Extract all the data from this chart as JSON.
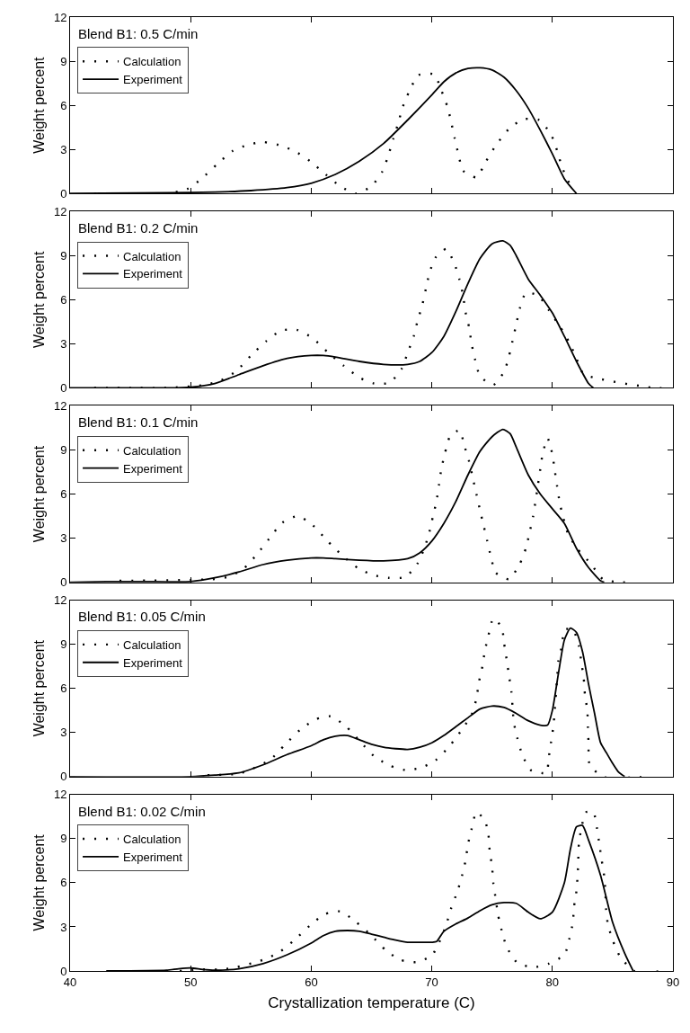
{
  "chart_data": [
    {
      "type": "line",
      "title": "Blend B1: 0.5 C/min",
      "ylabel": "Weight percent",
      "xlim": [
        40,
        90
      ],
      "xticks": [
        40,
        50,
        60,
        70,
        80,
        90
      ],
      "ylim": [
        0,
        12
      ],
      "yticks": [
        0,
        3,
        6,
        9,
        12
      ],
      "tick_labels": "y",
      "grid": false,
      "legend": "top left",
      "series": [
        {
          "name": "Calculation",
          "line_style": "dotted",
          "marker": "none",
          "color": "#000000",
          "x": [
            42,
            44,
            46,
            48,
            49.7,
            50.9,
            52.2,
            53.5,
            54.7,
            56.0,
            57.3,
            58.6,
            59.9,
            61.2,
            62.4,
            63.7,
            65.0,
            65.9,
            66.4,
            66.8,
            67.2,
            67.6,
            68.1,
            68.9,
            70.2,
            70.8,
            71.3,
            71.6,
            71.9,
            72.2,
            72.6,
            73.7,
            74.5,
            75.3,
            76.4,
            77.6,
            78.9,
            79.9,
            80.4,
            80.8,
            81.4
          ],
          "values": [
            0,
            0,
            0,
            0,
            0.3,
            1.0,
            2.0,
            2.9,
            3.3,
            3.5,
            3.3,
            2.9,
            2.2,
            1.3,
            0.5,
            0,
            0.5,
            1.5,
            2.6,
            3.7,
            4.75,
            5.9,
            6.9,
            8.05,
            8.1,
            7.0,
            5.9,
            4.9,
            3.75,
            2.7,
            1.55,
            1.1,
            2.2,
            3.25,
            4.4,
            5.05,
            5.0,
            4.0,
            2.9,
            1.8,
            0.7
          ]
        },
        {
          "name": "Experiment",
          "line_style": "solid",
          "marker": "none",
          "color": "#000000",
          "x": [
            40,
            48,
            52,
            55,
            58,
            60,
            62,
            64,
            66,
            68,
            70,
            71,
            72,
            73,
            74,
            75,
            76,
            77,
            78,
            79,
            80,
            81,
            82
          ],
          "values": [
            0,
            0.05,
            0.1,
            0.2,
            0.4,
            0.7,
            1.3,
            2.2,
            3.4,
            5.0,
            6.7,
            7.6,
            8.2,
            8.5,
            8.55,
            8.4,
            7.9,
            7.0,
            5.8,
            4.3,
            2.7,
            1.0,
            0
          ]
        }
      ]
    },
    {
      "type": "line",
      "title": "Blend B1: 0.2 C/min",
      "ylabel": "Weight percent",
      "xlim": [
        40,
        90
      ],
      "xticks": [
        40,
        50,
        60,
        70,
        80,
        90
      ],
      "ylim": [
        0,
        12
      ],
      "yticks": [
        0,
        3,
        6,
        9,
        12
      ],
      "tick_labels": "y",
      "grid": false,
      "legend": "top left",
      "series": [
        {
          "name": "Calculation",
          "line_style": "dotted",
          "marker": "none",
          "color": "#000000",
          "x": [
            42,
            45,
            48,
            51.2,
            52.5,
            53.8,
            55.0,
            56.3,
            57.5,
            58.8,
            60.1,
            61.4,
            62.7,
            64.0,
            65.2,
            66.5,
            67.5,
            68.0,
            68.5,
            68.8,
            69.2,
            69.5,
            69.8,
            70.3,
            71.2,
            71.9,
            72.3,
            72.6,
            72.8,
            73.1,
            73.3,
            73.6,
            74.0,
            75.1,
            76.0,
            76.4,
            76.7,
            77.0,
            77.3,
            77.8,
            78.8,
            79.7,
            80.6,
            81.4,
            82.0,
            82.6,
            88.5,
            89.5
          ],
          "values": [
            0,
            0,
            0,
            0.2,
            0.5,
            1.15,
            2.2,
            3.2,
            3.9,
            3.95,
            3.4,
            2.4,
            1.5,
            0.7,
            0.3,
            0.35,
            1.3,
            2.4,
            3.5,
            4.5,
            5.6,
            6.7,
            7.8,
            8.85,
            9.45,
            8.4,
            7.35,
            6.25,
            5.15,
            4.1,
            3.0,
            1.9,
            0.8,
            0.2,
            1.1,
            2.15,
            3.2,
            4.3,
            5.4,
            6.45,
            6.3,
            5.3,
            4.2,
            3.1,
            2.0,
            0.95,
            0,
            0
          ]
        },
        {
          "name": "Experiment",
          "line_style": "solid",
          "marker": "none",
          "color": "#000000",
          "x": [
            40,
            48,
            50,
            52,
            54,
            56,
            58,
            60,
            61,
            62,
            64,
            66,
            68,
            69,
            70,
            71,
            72,
            73,
            74,
            75,
            75.9,
            76.5,
            77,
            78,
            79,
            80,
            81,
            82,
            83,
            83.4
          ],
          "values": [
            0,
            0,
            0.05,
            0.3,
            0.9,
            1.5,
            2.0,
            2.2,
            2.2,
            2.1,
            1.8,
            1.6,
            1.6,
            1.8,
            2.4,
            3.5,
            5.2,
            7.1,
            8.8,
            9.8,
            10.0,
            9.7,
            9.0,
            7.4,
            6.3,
            5.1,
            3.5,
            1.8,
            0.3,
            0
          ]
        }
      ]
    },
    {
      "type": "line",
      "title": "Blend B1: 0.1 C/min",
      "ylabel": "Weight percent",
      "xlim": [
        40,
        90
      ],
      "xticks": [
        40,
        50,
        60,
        70,
        80,
        90
      ],
      "ylim": [
        0,
        12
      ],
      "yticks": [
        0,
        3,
        6,
        9,
        12
      ],
      "tick_labels": "y",
      "grid": false,
      "legend": "top left",
      "series": [
        {
          "name": "Calculation",
          "line_style": "dotted",
          "marker": "none",
          "color": "#000000",
          "x": [
            44.1,
            51.7,
            53.0,
            54.3,
            55.5,
            56.5,
            57.6,
            58.9,
            60.1,
            61.3,
            62.6,
            63.9,
            65.1,
            66.4,
            67.8,
            68.8,
            69.4,
            69.8,
            70.1,
            70.4,
            70.6,
            70.8,
            71.1,
            71.5,
            72.3,
            72.7,
            73.1,
            73.4,
            73.7,
            74.0,
            74.3,
            74.6,
            74.9,
            75.3,
            76.4,
            77.3,
            77.8,
            78.1,
            78.4,
            78.6,
            78.8,
            79.0,
            79.2,
            79.6,
            80.0,
            80.2,
            80.4,
            80.6,
            80.9,
            81.3,
            82.1,
            83.2,
            84.2,
            85.6,
            86.1
          ],
          "values": [
            0.1,
            0.2,
            0.35,
            0.85,
            1.9,
            2.95,
            4.05,
            4.5,
            3.9,
            2.85,
            1.8,
            0.95,
            0.5,
            0.3,
            0.35,
            1.25,
            2.35,
            3.4,
            4.5,
            5.55,
            6.65,
            7.75,
            8.8,
            9.9,
            10.35,
            9.3,
            8.2,
            7.1,
            6.0,
            4.9,
            3.85,
            2.8,
            1.75,
            0.65,
            0.2,
            1.25,
            2.3,
            3.35,
            4.45,
            5.5,
            6.6,
            7.7,
            8.75,
            9.8,
            8.7,
            7.6,
            6.5,
            5.45,
            4.4,
            3.3,
            2.25,
            1.25,
            0.2,
            0,
            0
          ]
        },
        {
          "name": "Experiment",
          "line_style": "solid",
          "marker": "none",
          "color": "#000000",
          "x": [
            40,
            43,
            46,
            50,
            52,
            54,
            56,
            58,
            60,
            61,
            62,
            64,
            66,
            68,
            69,
            70,
            71,
            72,
            73,
            74,
            75,
            75.9,
            76.5,
            77,
            78,
            79,
            80,
            81,
            82,
            83,
            84,
            84.3
          ],
          "values": [
            0,
            0.05,
            0.05,
            0.05,
            0.3,
            0.7,
            1.2,
            1.5,
            1.65,
            1.65,
            1.6,
            1.5,
            1.45,
            1.6,
            2.0,
            2.8,
            4.0,
            5.5,
            7.3,
            8.9,
            9.9,
            10.4,
            10.1,
            9.2,
            7.3,
            6.0,
            5.0,
            4.0,
            2.3,
            1.0,
            0.1,
            0
          ]
        }
      ]
    },
    {
      "type": "line",
      "title": "Blend B1: 0.05 C/min",
      "ylabel": "Weight percent",
      "xlim": [
        40,
        90
      ],
      "xticks": [
        40,
        50,
        60,
        70,
        80,
        90
      ],
      "ylim": [
        0,
        12
      ],
      "yticks": [
        0,
        3,
        6,
        9,
        12
      ],
      "tick_labels": "y",
      "grid": false,
      "legend": "top left",
      "series": [
        {
          "name": "Calculation",
          "line_style": "dotted",
          "marker": "none",
          "color": "#000000",
          "x": [
            51.4,
            54.0,
            55.3,
            56.6,
            57.8,
            59.1,
            60.4,
            61.6,
            62.9,
            64.1,
            65.2,
            66.5,
            67.8,
            69.1,
            70.3,
            71.5,
            72.5,
            73.3,
            73.7,
            73.9,
            74.2,
            74.4,
            74.7,
            75.1,
            75.8,
            76.0,
            76.2,
            76.4,
            76.6,
            76.7,
            76.8,
            77.1,
            77.5,
            78.2,
            79.5,
            79.7,
            79.9,
            80.1,
            80.2,
            80.3,
            80.4,
            80.5,
            80.8,
            81.0,
            81.7,
            82.2,
            82.4,
            82.6,
            82.7,
            82.9,
            82.95,
            83.0,
            83.1,
            84.2,
            87.9
          ],
          "values": [
            0.1,
            0.2,
            0.6,
            1.15,
            2.15,
            3.2,
            3.9,
            4.1,
            3.4,
            2.35,
            1.4,
            0.75,
            0.45,
            0.6,
            1.1,
            2.1,
            3.2,
            4.2,
            5.3,
            6.4,
            7.5,
            8.55,
            9.6,
            10.75,
            10.15,
            9.05,
            8.0,
            6.9,
            5.8,
            4.75,
            3.7,
            2.6,
            1.5,
            0.45,
            0.25,
            1.3,
            2.4,
            3.5,
            4.55,
            5.65,
            6.7,
            7.85,
            8.9,
            10.0,
            10.0,
            8.9,
            7.8,
            6.7,
            5.6,
            4.5,
            3.4,
            2.3,
            0.8,
            0,
            0
          ]
        },
        {
          "name": "Experiment",
          "line_style": "solid",
          "marker": "none",
          "color": "#000000",
          "x": [
            40,
            50,
            52,
            54,
            56,
            58,
            60,
            61,
            62,
            63,
            64,
            65,
            66,
            67,
            68,
            69,
            70,
            71,
            72,
            73,
            74,
            75,
            76,
            77,
            78,
            79,
            79.6,
            80,
            80.5,
            81,
            81.5,
            82,
            82.5,
            83,
            83.5,
            84,
            84.5,
            85,
            85.5,
            86
          ],
          "values": [
            0,
            0,
            0.1,
            0.25,
            0.8,
            1.5,
            2.1,
            2.5,
            2.75,
            2.8,
            2.5,
            2.2,
            2.0,
            1.9,
            1.85,
            2.0,
            2.3,
            2.8,
            3.4,
            4.0,
            4.6,
            4.8,
            4.7,
            4.3,
            3.8,
            3.5,
            3.5,
            4.5,
            7.0,
            9.3,
            10.1,
            9.8,
            8.5,
            6.3,
            4.3,
            2.3,
            1.6,
            0.9,
            0.3,
            0
          ]
        }
      ]
    },
    {
      "type": "line",
      "title": "Blend B1: 0.02 C/min",
      "xlabel": "Crystallization temperature (C)",
      "ylabel": "Weight percent",
      "xlim": [
        40,
        90
      ],
      "xticks": [
        40,
        50,
        60,
        70,
        80,
        90
      ],
      "ylim": [
        0,
        12
      ],
      "yticks": [
        0,
        3,
        6,
        9,
        12
      ],
      "grid": false,
      "legend": "top left",
      "series": [
        {
          "name": "Calculation",
          "line_style": "dotted",
          "marker": "none",
          "color": "#000000",
          "x": [
            49.1,
            50.9,
            52.3,
            53.5,
            56.0,
            57.3,
            58.6,
            59.9,
            61.1,
            62.4,
            63.7,
            65.0,
            66.2,
            67.4,
            68.7,
            70.0,
            70.7,
            71.2,
            71.6,
            72.1,
            72.5,
            72.8,
            73.0,
            73.3,
            73.7,
            74.4,
            74.7,
            74.8,
            75.0,
            75.1,
            75.3,
            75.5,
            75.8,
            76.2,
            77.1,
            78.4,
            79.7,
            81.0,
            81.4,
            81.7,
            81.8,
            82.0,
            82.1,
            82.15,
            82.2,
            82.4,
            82.8,
            83.4,
            83.7,
            83.9,
            84.1,
            84.3,
            84.4,
            84.45,
            84.6,
            85.0,
            85.6,
            86.8,
            89.4
          ],
          "values": [
            0,
            0.1,
            0.1,
            0.2,
            0.75,
            1.25,
            2.1,
            3.1,
            3.85,
            4.05,
            3.35,
            2.4,
            1.4,
            0.75,
            0.6,
            1.05,
            2.1,
            3.15,
            4.25,
            5.35,
            6.45,
            7.5,
            8.6,
            9.65,
            10.8,
            10.25,
            9.25,
            8.2,
            7.1,
            6.0,
            4.9,
            3.8,
            2.75,
            1.65,
            0.55,
            0.25,
            0.5,
            1.1,
            2.15,
            3.3,
            4.4,
            5.45,
            6.55,
            7.6,
            8.65,
            9.7,
            10.8,
            10.8,
            9.7,
            8.6,
            7.5,
            6.45,
            5.35,
            4.25,
            3.2,
            2.1,
            1.0,
            0,
            0
          ]
        },
        {
          "name": "Experiment",
          "line_style": "solid",
          "marker": "none",
          "color": "#000000",
          "x": [
            43,
            48,
            49,
            50,
            51,
            52,
            54,
            56,
            58,
            60,
            61,
            62,
            63,
            64,
            65,
            66,
            67,
            68,
            69,
            70,
            70.4,
            71,
            72,
            73,
            74,
            75,
            76,
            77,
            78,
            79,
            80,
            81,
            81.5,
            82,
            82.5,
            83,
            84,
            85,
            86,
            86.7
          ],
          "values": [
            0,
            0.05,
            0.15,
            0.2,
            0.1,
            0.05,
            0.15,
            0.5,
            1.1,
            1.9,
            2.4,
            2.7,
            2.75,
            2.7,
            2.5,
            2.3,
            2.1,
            1.95,
            1.95,
            1.95,
            2.0,
            2.7,
            3.2,
            3.6,
            4.1,
            4.5,
            4.65,
            4.6,
            4.0,
            3.55,
            4.0,
            6.0,
            8.3,
            9.8,
            9.9,
            8.9,
            6.5,
            3.3,
            1.2,
            0
          ]
        }
      ]
    }
  ]
}
